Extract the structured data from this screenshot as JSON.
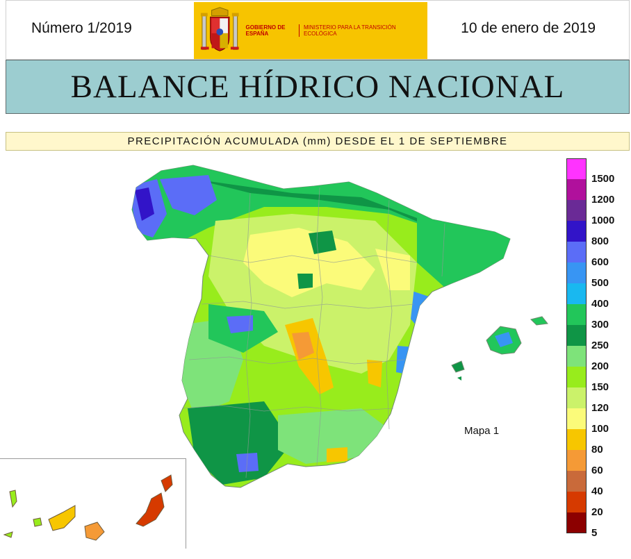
{
  "header": {
    "issue_number": "Número 1/2019",
    "date": "10 de enero de 2019",
    "logo_government": "GOBIERNO DE ESPAÑA",
    "logo_ministry": "MINISTERIO PARA LA TRANSICIÓN ECOLÓGICA"
  },
  "title": "BALANCE HÍDRICO NACIONAL",
  "subtitle": "PRECIPITACIÓN ACUMULADA (mm) DESDE EL 1 DE SEPTIEMBRE",
  "map_label": "Mapa 1",
  "legend": {
    "levels": [
      {
        "label": "1500",
        "color": "#ff33ff"
      },
      {
        "label": "1200",
        "color": "#b0109c"
      },
      {
        "label": "1000",
        "color": "#6a2a96"
      },
      {
        "label": "800",
        "color": "#3214c8"
      },
      {
        "label": "600",
        "color": "#5b6df7"
      },
      {
        "label": "500",
        "color": "#3895f3"
      },
      {
        "label": "400",
        "color": "#19b8f0"
      },
      {
        "label": "300",
        "color": "#22c65a"
      },
      {
        "label": "250",
        "color": "#0f9546"
      },
      {
        "label": "200",
        "color": "#7ee37a"
      },
      {
        "label": "150",
        "color": "#98ec1c"
      },
      {
        "label": "120",
        "color": "#cbf26a"
      },
      {
        "label": "100",
        "color": "#fbfb7a"
      },
      {
        "label": "80",
        "color": "#f7c600"
      },
      {
        "label": "60",
        "color": "#f59a36"
      },
      {
        "label": "40",
        "color": "#c96a3a"
      },
      {
        "label": "20",
        "color": "#d63a00"
      },
      {
        "label": "5",
        "color": "#8c0000"
      }
    ]
  }
}
